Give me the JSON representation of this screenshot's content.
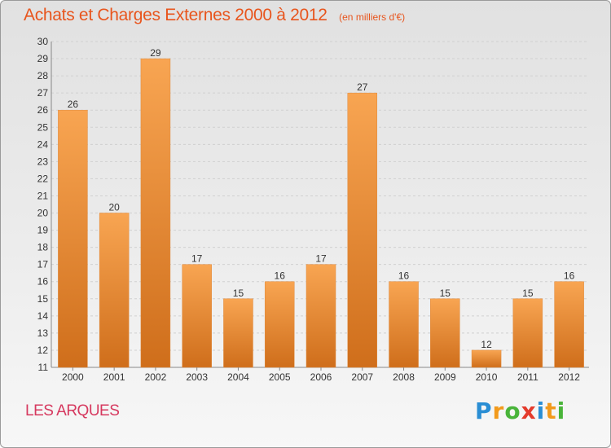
{
  "chart_data": {
    "type": "bar",
    "title": "Achats et Charges Externes 2000 à 2012",
    "units": "(en milliers d'€)",
    "categories": [
      "2000",
      "2001",
      "2002",
      "2003",
      "2004",
      "2005",
      "2006",
      "2007",
      "2008",
      "2009",
      "2010",
      "2011",
      "2012"
    ],
    "values": [
      26,
      20,
      29,
      17,
      15,
      16,
      17,
      27,
      16,
      15,
      12,
      15,
      16
    ],
    "ylim": [
      11,
      30
    ],
    "yticks": [
      11,
      12,
      13,
      14,
      15,
      16,
      17,
      18,
      19,
      20,
      21,
      22,
      23,
      24,
      25,
      26,
      27,
      28,
      29,
      30
    ],
    "grid": true,
    "colors": {
      "bar_light": "#f8a552",
      "bar_dark": "#cf6e1b",
      "title": "#e8551d",
      "place": "#d6395f"
    }
  },
  "place_name": "LES ARQUES",
  "logo": {
    "letters": [
      "P",
      "r",
      "o",
      "x",
      "i",
      "t",
      "i"
    ],
    "colors": [
      "#2a8ed4",
      "#f29a1c",
      "#49b43a",
      "#e43b2c",
      "#2a8ed4",
      "#f29a1c",
      "#49b43a"
    ]
  }
}
